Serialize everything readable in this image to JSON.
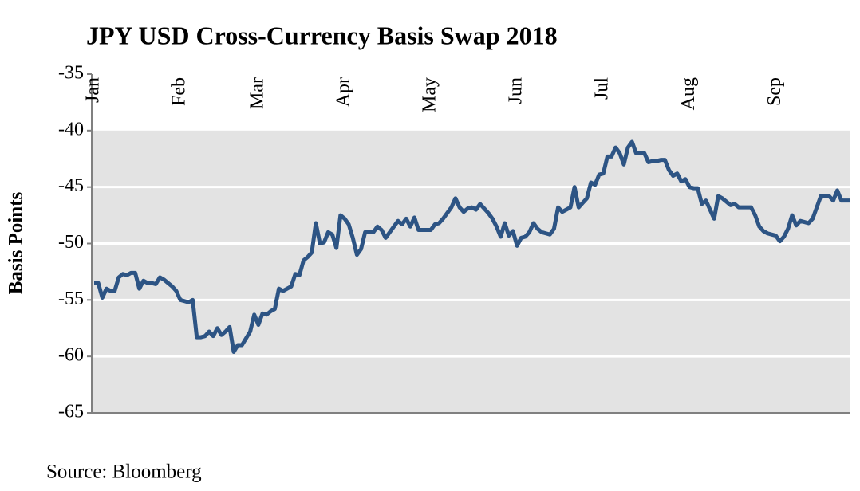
{
  "chart_data": {
    "type": "line",
    "title": "JPY USD Cross-Currency Basis Swap 2018",
    "y_label": "Basis Points",
    "source": "Source: Bloomberg",
    "categories": [
      "Jan",
      null,
      null,
      null,
      null,
      null,
      null,
      null,
      null,
      null,
      null,
      null,
      null,
      null,
      null,
      null,
      null,
      null,
      null,
      null,
      null,
      "Feb",
      null,
      null,
      null,
      null,
      null,
      null,
      null,
      null,
      null,
      null,
      null,
      null,
      null,
      null,
      null,
      null,
      null,
      null,
      "Mar",
      null,
      null,
      null,
      null,
      null,
      null,
      null,
      null,
      null,
      null,
      null,
      null,
      null,
      null,
      null,
      null,
      null,
      null,
      null,
      null,
      "Apr",
      null,
      null,
      null,
      null,
      null,
      null,
      null,
      null,
      null,
      null,
      null,
      null,
      null,
      null,
      null,
      null,
      null,
      null,
      null,
      null,
      "May",
      null,
      null,
      null,
      null,
      null,
      null,
      null,
      null,
      null,
      null,
      null,
      null,
      null,
      null,
      null,
      null,
      null,
      null,
      null,
      null,
      "Jun",
      null,
      null,
      null,
      null,
      null,
      null,
      null,
      null,
      null,
      null,
      null,
      null,
      null,
      null,
      null,
      null,
      null,
      null,
      null,
      null,
      "Jul",
      null,
      null,
      null,
      null,
      null,
      null,
      null,
      null,
      null,
      null,
      null,
      null,
      null,
      null,
      null,
      null,
      null,
      null,
      null,
      null,
      "Aug",
      null,
      null,
      null,
      null,
      null,
      null,
      null,
      null,
      null,
      null,
      null,
      null,
      null,
      null,
      null,
      null,
      null,
      null,
      null,
      null,
      "Sep",
      null,
      null,
      null,
      null,
      null,
      null,
      null,
      null,
      null,
      null,
      null,
      null,
      null,
      null,
      null,
      null,
      null,
      null
    ],
    "values": [
      -53.5,
      -53.5,
      -54.8,
      -54.0,
      -54.2,
      -54.2,
      -53.0,
      -52.7,
      -52.8,
      -52.6,
      -52.6,
      -54.0,
      -53.3,
      -53.5,
      -53.5,
      -53.6,
      -53.0,
      -53.2,
      -53.5,
      -53.8,
      -54.2,
      -55.0,
      -55.1,
      -55.2,
      -55.0,
      -58.3,
      -58.3,
      -58.2,
      -57.8,
      -58.2,
      -57.5,
      -58.1,
      -57.8,
      -57.4,
      -59.6,
      -59.0,
      -59.0,
      -58.4,
      -57.8,
      -56.3,
      -57.2,
      -56.2,
      -56.3,
      -56.0,
      -55.8,
      -54.0,
      -54.2,
      -54.0,
      -53.8,
      -52.7,
      -52.8,
      -51.5,
      -51.2,
      -50.8,
      -48.2,
      -50.0,
      -49.9,
      -49.0,
      -49.2,
      -50.4,
      -47.5,
      -47.8,
      -48.3,
      -49.5,
      -51.0,
      -50.5,
      -49.0,
      -49.0,
      -49.0,
      -48.5,
      -48.8,
      -49.5,
      -49.0,
      -48.5,
      -48.0,
      -48.3,
      -47.8,
      -48.5,
      -47.7,
      -48.8,
      -48.8,
      -48.8,
      -48.8,
      -48.3,
      -48.2,
      -47.8,
      -47.3,
      -46.8,
      -46.0,
      -46.8,
      -47.2,
      -46.9,
      -46.8,
      -47.0,
      -46.5,
      -46.9,
      -47.3,
      -47.8,
      -48.5,
      -49.4,
      -48.2,
      -49.3,
      -48.9,
      -50.2,
      -49.5,
      -49.4,
      -49.0,
      -48.2,
      -48.7,
      -49.0,
      -49.1,
      -49.2,
      -48.7,
      -46.8,
      -47.2,
      -47.0,
      -46.8,
      -45.0,
      -46.8,
      -46.4,
      -46.0,
      -44.6,
      -44.8,
      -43.9,
      -43.8,
      -42.3,
      -42.3,
      -41.5,
      -42.0,
      -43.0,
      -41.5,
      -41.0,
      -42.0,
      -42.0,
      -42.0,
      -42.8,
      -42.7,
      -42.7,
      -42.6,
      -42.6,
      -43.5,
      -44.0,
      -43.8,
      -44.5,
      -44.3,
      -45.0,
      -45.1,
      -45.1,
      -46.5,
      -46.2,
      -47.0,
      -47.8,
      -45.8,
      -46.0,
      -46.3,
      -46.6,
      -46.5,
      -46.8,
      -46.8,
      -46.8,
      -46.8,
      -47.5,
      -48.5,
      -48.9,
      -49.1,
      -49.2,
      -49.3,
      -49.8,
      -49.4,
      -48.7,
      -47.5,
      -48.4,
      -48.0,
      -48.1,
      -48.2,
      -47.8,
      -46.8,
      -45.8,
      -45.8,
      -45.8,
      -46.2,
      -45.3,
      -46.2,
      -46.2,
      -46.2
    ],
    "color": "#2d5484",
    "ylim": [
      -65,
      -35
    ],
    "yticks": [
      -35,
      -40,
      -45,
      -50,
      -55,
      -60,
      -65
    ],
    "grid": true
  }
}
